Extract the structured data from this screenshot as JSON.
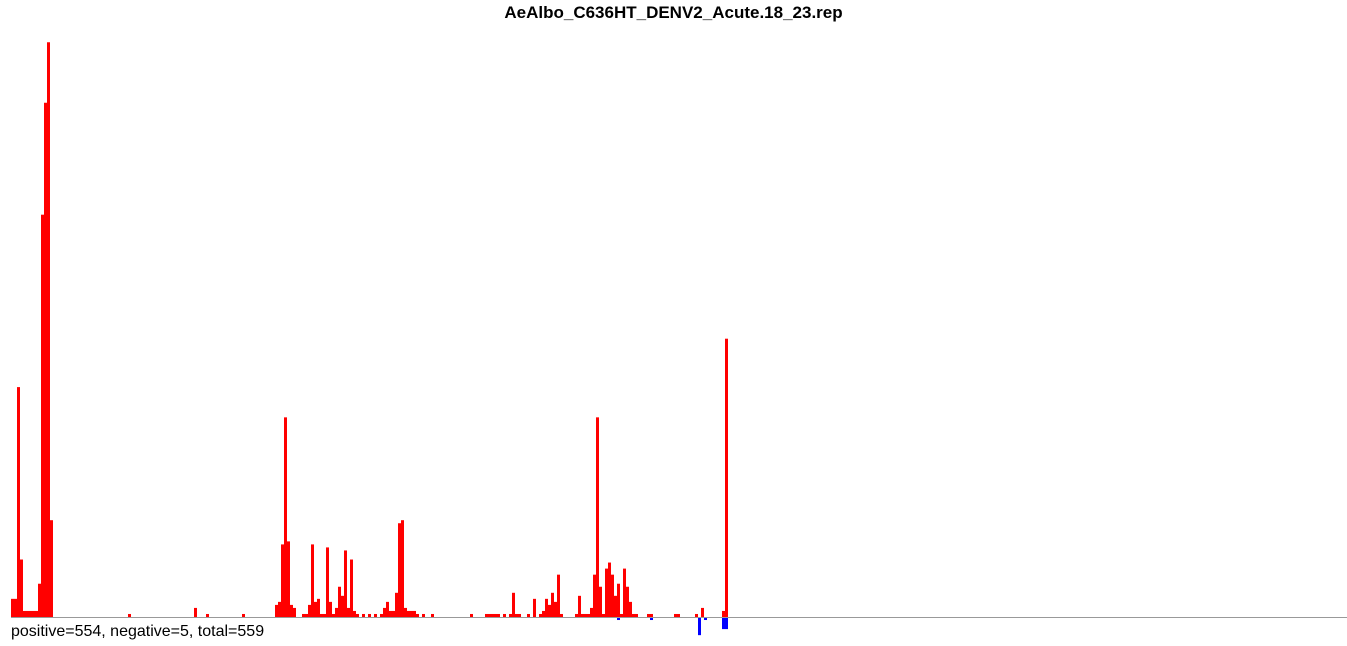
{
  "chart_data": {
    "type": "bar",
    "title": "AeAlbo_C636HT_DENV2_Acute.18_23.rep",
    "colors": {
      "positive": "#ff0000",
      "negative": "#0000ff",
      "baseline": "#999999"
    },
    "x_domain": [
      0,
      444
    ],
    "ylim": [
      -9,
      191
    ],
    "positive_bars": [
      [
        0,
        6
      ],
      [
        1,
        6
      ],
      [
        2,
        76
      ],
      [
        3,
        19
      ],
      [
        4,
        2
      ],
      [
        5,
        2
      ],
      [
        6,
        2
      ],
      [
        7,
        2
      ],
      [
        8,
        2
      ],
      [
        9,
        11
      ],
      [
        10,
        133
      ],
      [
        11,
        170
      ],
      [
        12,
        190
      ],
      [
        13,
        32
      ],
      [
        39,
        1
      ],
      [
        61,
        3
      ],
      [
        65,
        1
      ],
      [
        77,
        1
      ],
      [
        88,
        4
      ],
      [
        89,
        5
      ],
      [
        90,
        24
      ],
      [
        91,
        66
      ],
      [
        92,
        25
      ],
      [
        93,
        4
      ],
      [
        94,
        3
      ],
      [
        97,
        1
      ],
      [
        98,
        1
      ],
      [
        99,
        4
      ],
      [
        100,
        24
      ],
      [
        101,
        5
      ],
      [
        102,
        6
      ],
      [
        103,
        1
      ],
      [
        104,
        1
      ],
      [
        105,
        23
      ],
      [
        106,
        5
      ],
      [
        107,
        1
      ],
      [
        108,
        3
      ],
      [
        109,
        10
      ],
      [
        110,
        7
      ],
      [
        111,
        22
      ],
      [
        112,
        3
      ],
      [
        113,
        19
      ],
      [
        114,
        2
      ],
      [
        115,
        1
      ],
      [
        117,
        1
      ],
      [
        119,
        1
      ],
      [
        121,
        1
      ],
      [
        123,
        1
      ],
      [
        124,
        3
      ],
      [
        125,
        5
      ],
      [
        126,
        2
      ],
      [
        127,
        2
      ],
      [
        128,
        8
      ],
      [
        129,
        31
      ],
      [
        130,
        32
      ],
      [
        131,
        3
      ],
      [
        132,
        2
      ],
      [
        133,
        2
      ],
      [
        134,
        2
      ],
      [
        135,
        1
      ],
      [
        137,
        1
      ],
      [
        140,
        1
      ],
      [
        153,
        1
      ],
      [
        158,
        1
      ],
      [
        159,
        1
      ],
      [
        160,
        1
      ],
      [
        161,
        1
      ],
      [
        162,
        1
      ],
      [
        164,
        1
      ],
      [
        166,
        1
      ],
      [
        167,
        8
      ],
      [
        168,
        1
      ],
      [
        169,
        1
      ],
      [
        172,
        1
      ],
      [
        174,
        6
      ],
      [
        176,
        1
      ],
      [
        177,
        2
      ],
      [
        178,
        6
      ],
      [
        179,
        4
      ],
      [
        180,
        8
      ],
      [
        181,
        5
      ],
      [
        182,
        14
      ],
      [
        183,
        1
      ],
      [
        188,
        1
      ],
      [
        189,
        7
      ],
      [
        190,
        1
      ],
      [
        191,
        1
      ],
      [
        192,
        1
      ],
      [
        193,
        3
      ],
      [
        194,
        14
      ],
      [
        195,
        66
      ],
      [
        196,
        10
      ],
      [
        197,
        1
      ],
      [
        198,
        16
      ],
      [
        199,
        18
      ],
      [
        200,
        14
      ],
      [
        201,
        7
      ],
      [
        202,
        11
      ],
      [
        203,
        1
      ],
      [
        204,
        16
      ],
      [
        205,
        10
      ],
      [
        206,
        5
      ],
      [
        207,
        1
      ],
      [
        208,
        1
      ],
      [
        212,
        1
      ],
      [
        213,
        1
      ],
      [
        221,
        1
      ],
      [
        222,
        1
      ],
      [
        228,
        1
      ],
      [
        230,
        3
      ],
      [
        237,
        2
      ],
      [
        238,
        92
      ]
    ],
    "negative_bars": [
      [
        202,
        1
      ],
      [
        213,
        1
      ],
      [
        229,
        6
      ],
      [
        231,
        1
      ],
      [
        237,
        4
      ],
      [
        238,
        4
      ]
    ]
  },
  "summary": {
    "text": "positive=554, negative=5, total=559",
    "positive": 554,
    "negative": 5,
    "total": 559
  }
}
